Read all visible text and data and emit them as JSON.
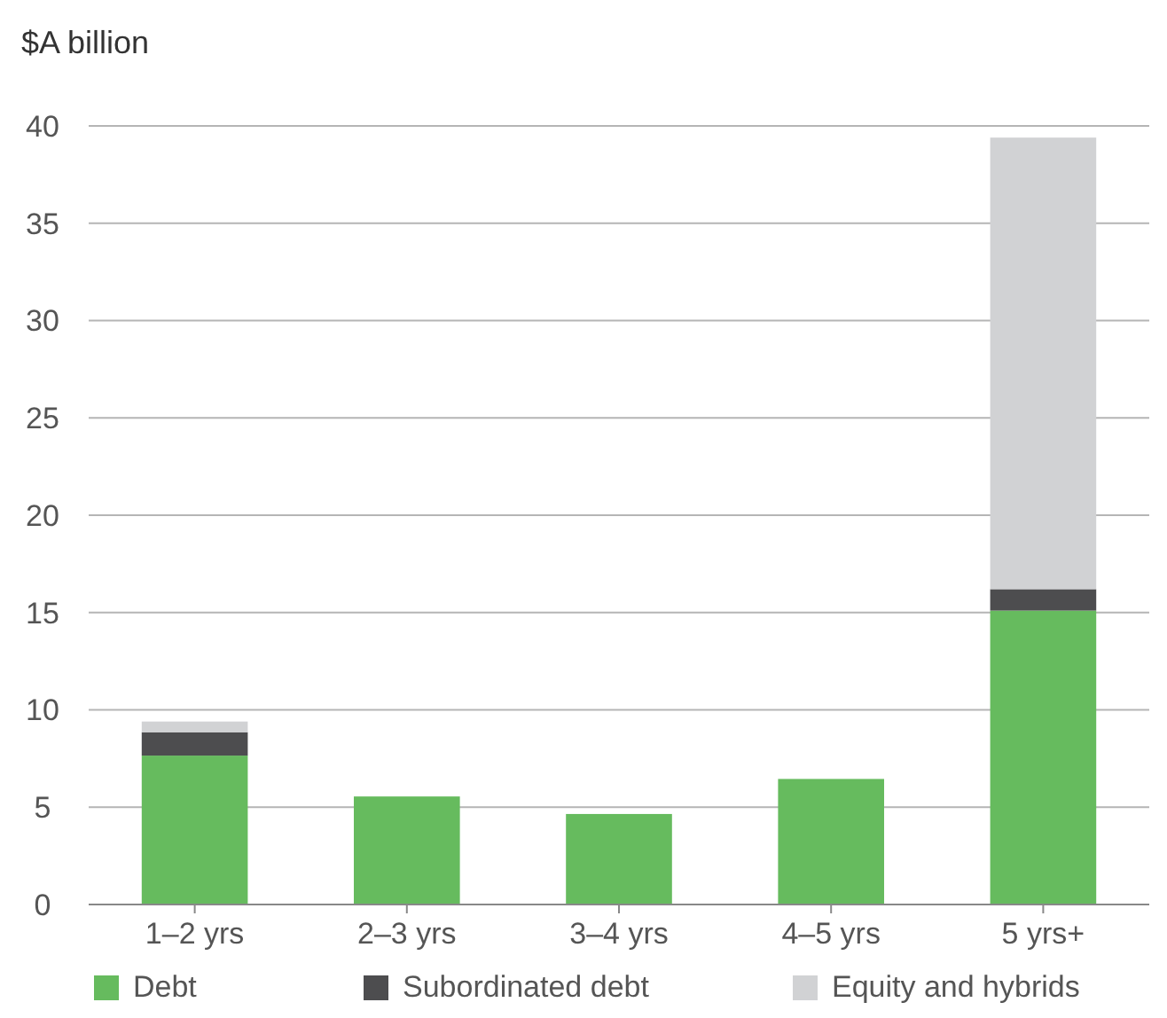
{
  "chart_data": {
    "type": "bar",
    "stacked": true,
    "ylabel": "$A billion",
    "categories": [
      "1–2 yrs",
      "2–3 yrs",
      "3–4 yrs",
      "4–5 yrs",
      "5 yrs+"
    ],
    "series": [
      {
        "name": "Debt",
        "color": "#66bb5e",
        "values": [
          7.65,
          5.55,
          4.65,
          6.45,
          15.1
        ]
      },
      {
        "name": "Subordinated debt",
        "color": "#4d4d4f",
        "values": [
          1.2,
          0,
          0,
          0,
          1.1
        ]
      },
      {
        "name": "Equity and hybrids",
        "color": "#d1d2d4",
        "values": [
          0.55,
          0,
          0,
          0,
          23.2
        ]
      }
    ],
    "ylim": [
      0,
      40
    ],
    "yticks": [
      0,
      5,
      10,
      15,
      20,
      25,
      30,
      35,
      40
    ],
    "grid": "y",
    "legend": "bottom"
  }
}
